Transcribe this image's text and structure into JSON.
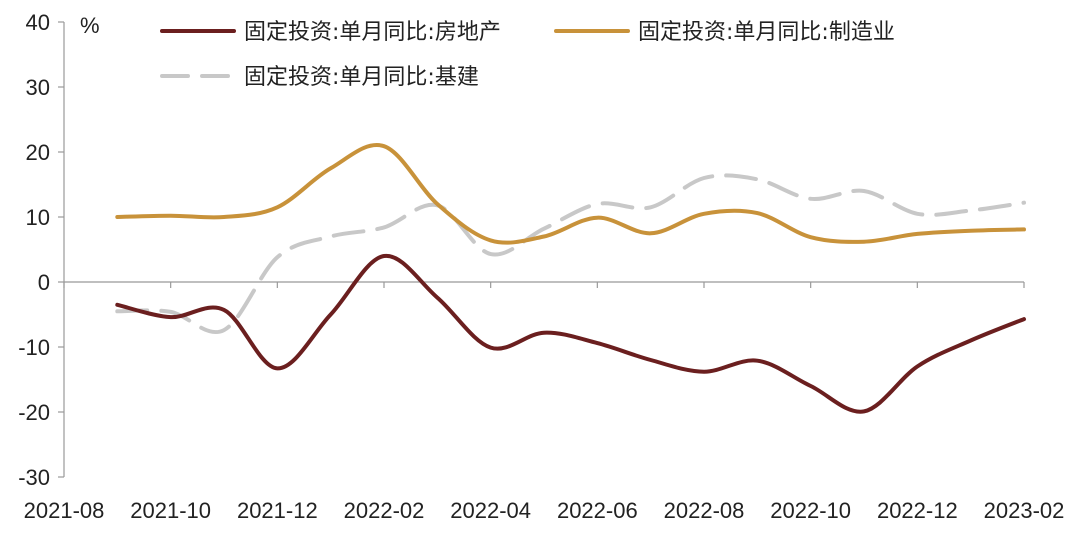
{
  "chart_data": {
    "type": "line",
    "unit": "%",
    "ylim": [
      -30,
      40
    ],
    "y_ticks": [
      -30,
      -20,
      -10,
      0,
      10,
      20,
      30,
      40
    ],
    "x_tick_labels": [
      "2021-08",
      "2021-10",
      "2021-12",
      "2022-02",
      "2022-04",
      "2022-06",
      "2022-08",
      "2022-10",
      "2022-12",
      "2023-02"
    ],
    "x": [
      "2021-09",
      "2021-10",
      "2021-11",
      "2021-12",
      "2022-01",
      "2022-02",
      "2022-03",
      "2022-04",
      "2022-05",
      "2022-06",
      "2022-07",
      "2022-08",
      "2022-09",
      "2022-10",
      "2022-11",
      "2022-12",
      "2023-01",
      "2023-02"
    ],
    "grid": false,
    "legend_position": "top",
    "series": [
      {
        "name": "固定投资:单月同比:房地产",
        "color": "#6b1f1f",
        "style": "solid",
        "values": [
          -3.5,
          -5.4,
          -4.3,
          -13.3,
          -5.0,
          4.0,
          -2.4,
          -10.1,
          -7.8,
          -9.4,
          -12.0,
          -13.8,
          -12.1,
          -16.0,
          -19.9,
          -13.0,
          -9.0,
          -5.7
        ]
      },
      {
        "name": "固定投资:单月同比:制造业",
        "color": "#c8923a",
        "style": "solid",
        "values": [
          10.0,
          10.2,
          10.0,
          11.5,
          17.5,
          20.9,
          12.0,
          6.4,
          7.0,
          9.9,
          7.5,
          10.5,
          10.6,
          6.9,
          6.2,
          7.4,
          7.9,
          8.1
        ]
      },
      {
        "name": "固定投资:单月同比:基建",
        "color": "#c8c8c8",
        "style": "dashed",
        "values": [
          -4.5,
          -4.6,
          -7.4,
          3.8,
          7.0,
          8.4,
          11.8,
          4.3,
          8.2,
          12.0,
          11.5,
          16.0,
          15.8,
          12.8,
          14.0,
          10.5,
          11.0,
          12.2
        ]
      }
    ]
  }
}
